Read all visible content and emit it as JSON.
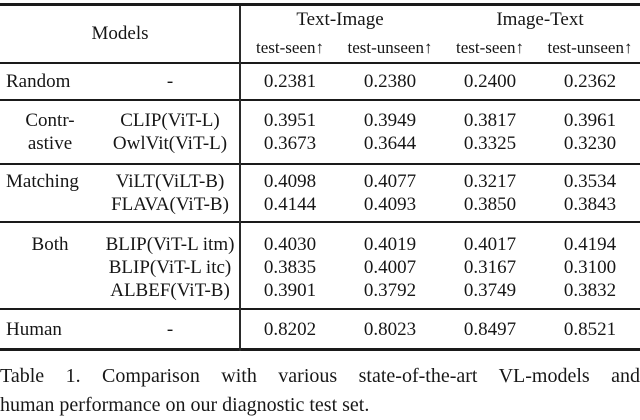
{
  "table": {
    "header": {
      "models": "Models",
      "groups": [
        {
          "label": "Text-Image"
        },
        {
          "label": "Image-Text"
        }
      ],
      "subheaders": [
        "test-seen↑",
        "test-unseen↑",
        "test-seen↑",
        "test-unseen↑"
      ]
    },
    "sections": [
      {
        "group_lines": [
          "Random"
        ],
        "rows": [
          {
            "model": "-",
            "values": [
              "0.2381",
              "0.2380",
              "0.2400",
              "0.2362"
            ]
          }
        ]
      },
      {
        "group_lines": [
          "Contr-",
          "astive"
        ],
        "rows": [
          {
            "model": "CLIP(ViT-L)",
            "values": [
              "0.3951",
              "0.3949",
              "0.3817",
              "0.3961"
            ]
          },
          {
            "model": "OwlVit(ViT-L)",
            "values": [
              "0.3673",
              "0.3644",
              "0.3325",
              "0.3230"
            ]
          }
        ]
      },
      {
        "group_lines": [
          "Matching"
        ],
        "rows": [
          {
            "model": "ViLT(ViLT-B)",
            "values": [
              "0.4098",
              "0.4077",
              "0.3217",
              "0.3534"
            ]
          },
          {
            "model": "FLAVA(ViT-B)",
            "values": [
              "0.4144",
              "0.4093",
              "0.3850",
              "0.3843"
            ]
          }
        ]
      },
      {
        "group_lines": [
          "Both"
        ],
        "rows": [
          {
            "model": "BLIP(ViT-L itm)",
            "values": [
              "0.4030",
              "0.4019",
              "0.4017",
              "0.4194"
            ]
          },
          {
            "model": "BLIP(ViT-L itc)",
            "values": [
              "0.3835",
              "0.4007",
              "0.3167",
              "0.3100"
            ]
          },
          {
            "model": "ALBEF(ViT-B)",
            "values": [
              "0.3901",
              "0.3792",
              "0.3749",
              "0.3832"
            ]
          }
        ]
      },
      {
        "group_lines": [
          "Human"
        ],
        "rows": [
          {
            "model": "-",
            "values": [
              "0.8202",
              "0.8023",
              "0.8497",
              "0.8521"
            ]
          }
        ]
      }
    ],
    "caption": {
      "line1": "Table 1. Comparison with various state-of-the-art VL-models and",
      "line2": "human performance on our diagnostic test set."
    }
  },
  "colors": {
    "background": "#ffffff",
    "text": "#161616",
    "rule": "#1a1a1a"
  }
}
